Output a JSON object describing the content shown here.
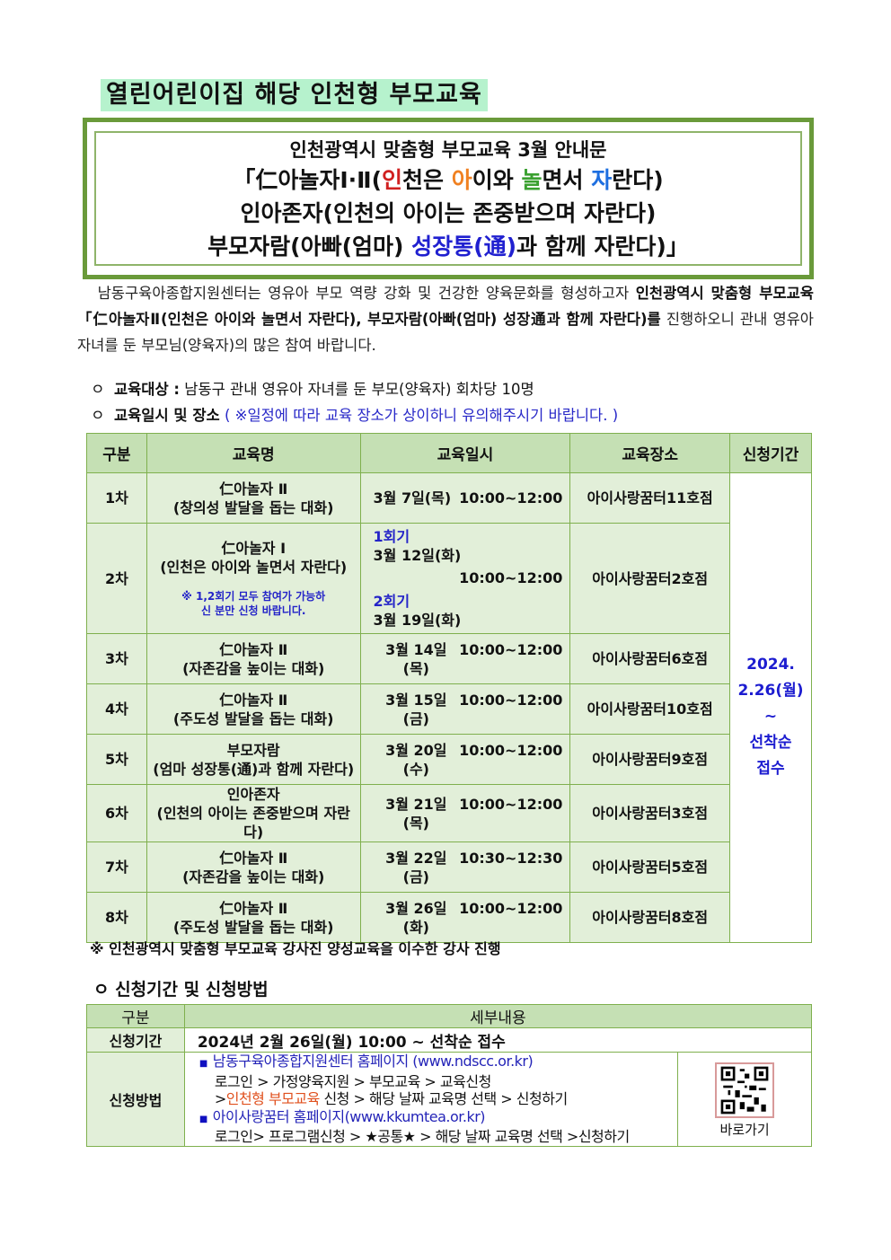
{
  "title": "열린어린이집 해당 인천형 부모교육",
  "banner": {
    "line1": "인천광역시 맞춤형 부모교육 3월 안내문",
    "line2_parts": [
      "「仁아놀자Ⅰ·Ⅱ(",
      "인",
      "천은 ",
      "아",
      "이와 ",
      "놀",
      "면서 ",
      "자",
      "란다)"
    ],
    "line3": "인아존자(인천의 아이는 존중받으며 자란다)",
    "line4_a": "부모자람(아빠(엄마) ",
    "line4_b": "성장통(通)",
    "line4_c": "과 함께 자란다)」"
  },
  "intro": {
    "text1": "남동구육아종합지원센터는 영유아 부모 역량 강화 및 건강한 양육문화를 형성하고자 ",
    "bold": "인천광역시 맞춤형 부모교육 「仁아놀자Ⅱ(인천은 아이와 놀면서 자란다), 부모자람(아빠(엄마) 성장通과 함께 자란다)",
    "text2": "를 진행하오니 관내 영유아 자녀를 둔 부모님(양육자)의 많은 참여 바랍니다."
  },
  "target": {
    "marker": "ㅇ",
    "label": "교육대상 :",
    "value": "남동구 관내 영유아 자녀를 둔 부모(양육자) 회차당 10명"
  },
  "schedule_heading": {
    "marker": "ㅇ",
    "label": "교육일시 및 장소",
    "note": "( ※일정에 따라 교육 장소가 상이하니 유의해주시기 바랍니다. )"
  },
  "schedule": {
    "headers": [
      "구분",
      "교육명",
      "교육일시",
      "교육장소",
      "신청기간"
    ],
    "period": [
      "2024.",
      "2.26(월)",
      "~",
      "선착순",
      "접수"
    ],
    "rows": [
      {
        "no": "1차",
        "name": "仁아놀자 Ⅱ",
        "sub": "(창의성 발달을 돕는 대화)",
        "date": "3월  7일(목)",
        "time": "10:00~12:00",
        "place": "아이사랑꿈터11호점"
      },
      {
        "no": "2차",
        "name": "仁아놀자 Ⅰ",
        "sub": "(인천은 아이와 놀면서 자란다)",
        "note": "※ 1,2회기 모두 참여가 가능하신 분만 신청 바랍니다.",
        "s1": "1회기",
        "date": "3월 12일(화)",
        "s2": "2회기",
        "date2": "3월 19일(화)",
        "time": "10:00~12:00",
        "place": "아이사랑꿈터2호점"
      },
      {
        "no": "3차",
        "name": "仁아놀자 Ⅱ",
        "sub": "(자존감을 높이는 대화)",
        "date": "3월 14일(목)",
        "time": "10:00~12:00",
        "place": "아이사랑꿈터6호점"
      },
      {
        "no": "4차",
        "name": "仁아놀자 Ⅱ",
        "sub": "(주도성 발달을 돕는 대화)",
        "date": "3월 15일(금)",
        "time": "10:00~12:00",
        "place": "아이사랑꿈터10호점"
      },
      {
        "no": "5차",
        "name": "부모자람",
        "sub": "(엄마 성장통(通)과 함께 자란다)",
        "date": "3월 20일(수)",
        "time": "10:00~12:00",
        "place": "아이사랑꿈터9호점"
      },
      {
        "no": "6차",
        "name": "인아존자",
        "sub": "(인천의 아이는 존중받으며 자란다)",
        "date": "3월 21일(목)",
        "time": "10:00~12:00",
        "place": "아이사랑꿈터3호점"
      },
      {
        "no": "7차",
        "name": "仁아놀자 Ⅱ",
        "sub": "(자존감을 높이는 대화)",
        "date": "3월 22일(금)",
        "time": "10:30~12:30",
        "place": "아이사랑꿈터5호점"
      },
      {
        "no": "8차",
        "name": "仁아놀자 Ⅱ",
        "sub": "(주도성 발달을 돕는 대화)",
        "date": "3월 26일(화)",
        "time": "10:00~12:00",
        "place": "아이사랑꿈터8호점"
      }
    ]
  },
  "footnote": "※ 인천광역시 맞춤형 부모교육 강사진 양성교육을 이수한 강사 진행",
  "apply": {
    "heading": "ㅇ 신청기간 및 신청방법",
    "headers": [
      "구분",
      "세부내용"
    ],
    "period_label": "신청기간",
    "period_value": "2024년 2월 26일(월) 10:00 ~ 선착순 접수",
    "method_label": "신청방법",
    "site1": "남동구육아종합지원센터 홈페이지   (www.ndscc.or.kr)",
    "site1_step1": "로그인 > 가정양육지원 > 부모교육 > 교육신청",
    "site1_step2_pre": ">",
    "site1_step2_hl": "인천형 부모교육",
    "site1_step2_post": " 신청 > 해당 날짜 교육명 선택 > 신청하기",
    "site2": "아이사랑꿈터 홈페이지(www.kkumtea.or.kr)",
    "site2_step": "로그인> 프로그램신청 > ★공통★ > 해당 날짜 교육명 선택 >신청하기",
    "qr_label": "바로가기"
  },
  "colors": {
    "frame": "#6a9a3a",
    "header_bg": "#c5e0b4",
    "cell_bg": "#e2efd9",
    "title_bg": "#b6f2cd",
    "accent_blue": "#2020d0"
  }
}
